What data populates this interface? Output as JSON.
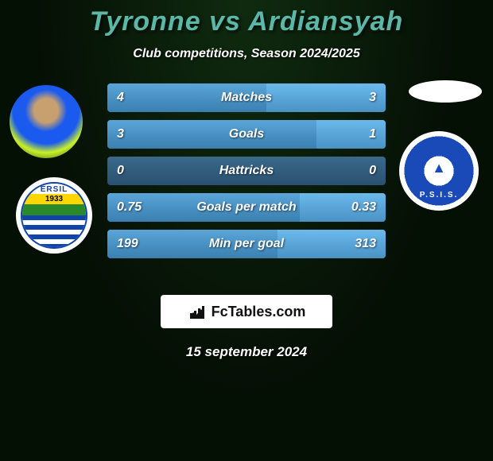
{
  "header": {
    "title_left": "Tyronne",
    "title_vs": "vs",
    "title_right": "Ardiansyah",
    "title_color": "#5bb8a8",
    "subtitle": "Club competitions, Season 2024/2025"
  },
  "players": {
    "left_club_top": "ERSIL",
    "left_club_year": "1933",
    "right_club_text": "P.S.I.S."
  },
  "stats": {
    "bar_colors": {
      "left": "#4a8fc0",
      "right": "#5aa5d8",
      "bg": "#2f5a7a"
    },
    "rows": [
      {
        "label": "Matches",
        "left": "4",
        "right": "3",
        "left_pct": 57,
        "right_pct": 43
      },
      {
        "label": "Goals",
        "left": "3",
        "right": "1",
        "left_pct": 75,
        "right_pct": 25
      },
      {
        "label": "Hattricks",
        "left": "0",
        "right": "0",
        "left_pct": 0,
        "right_pct": 0
      },
      {
        "label": "Goals per match",
        "left": "0.75",
        "right": "0.33",
        "left_pct": 69,
        "right_pct": 31
      },
      {
        "label": "Min per goal",
        "left": "199",
        "right": "313",
        "left_pct": 61,
        "right_pct": 39
      }
    ]
  },
  "footer": {
    "brand": "FcTables.com",
    "date": "15 september 2024"
  }
}
